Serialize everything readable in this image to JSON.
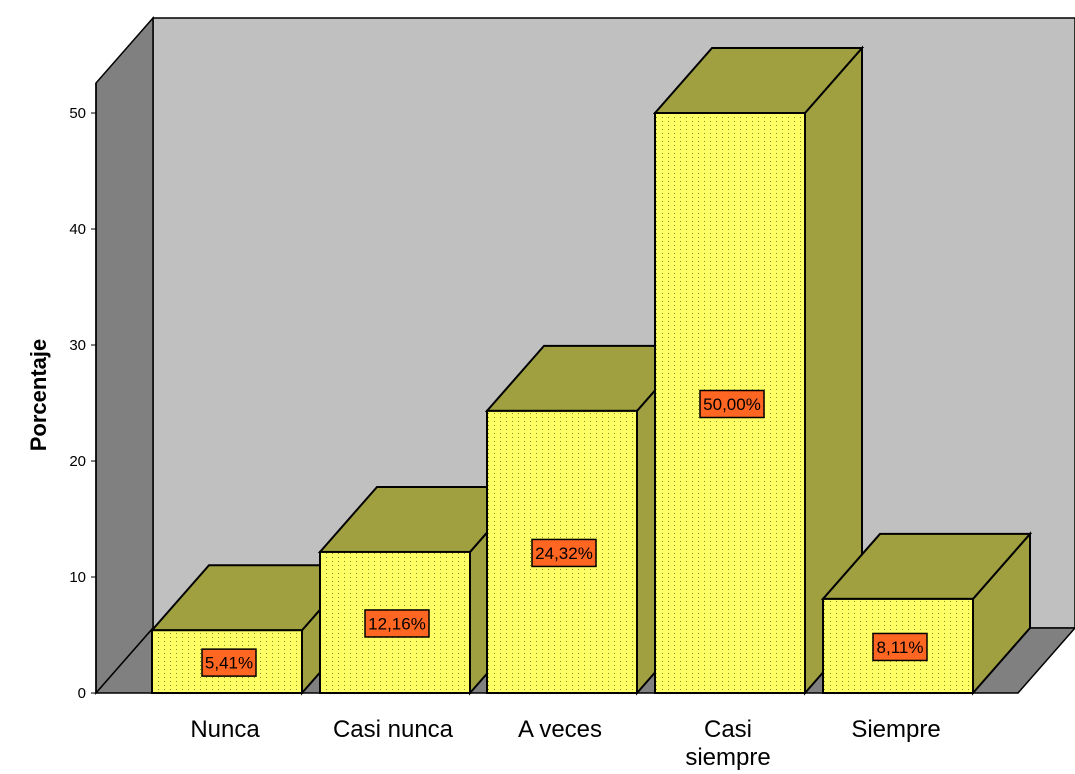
{
  "chart_data": {
    "type": "bar",
    "style": "3d",
    "title": "",
    "xlabel": "",
    "ylabel": "Porcentaje",
    "ylim": [
      0,
      50
    ],
    "yticks": [
      "0",
      "10",
      "20",
      "30",
      "40",
      "50"
    ],
    "grid": false,
    "legend": "none",
    "categories": [
      {
        "label": "Nunca",
        "label_lines": [
          "Nunca"
        ],
        "value": 5.41,
        "data_label": "5,41%"
      },
      {
        "label": "Casi nunca",
        "label_lines": [
          "Casi nunca"
        ],
        "value": 12.16,
        "data_label": "12,16%"
      },
      {
        "label": "A veces",
        "label_lines": [
          "A veces"
        ],
        "value": 24.32,
        "data_label": "24,32%"
      },
      {
        "label": "Casi siempre",
        "label_lines": [
          "Casi",
          "siempre"
        ],
        "value": 50.0,
        "data_label": "50,00%"
      },
      {
        "label": "Siempre",
        "label_lines": [
          "Siempre"
        ],
        "value": 8.11,
        "data_label": "8,11%"
      }
    ],
    "colors": {
      "bar_front": "#ffff66",
      "bar_top": "#a0a040",
      "bar_side": "#a0a040",
      "back_wall": "#c0c0c0",
      "side_wall": "#808080",
      "floor": "#808080",
      "data_label_bg": "#ff6622"
    }
  }
}
